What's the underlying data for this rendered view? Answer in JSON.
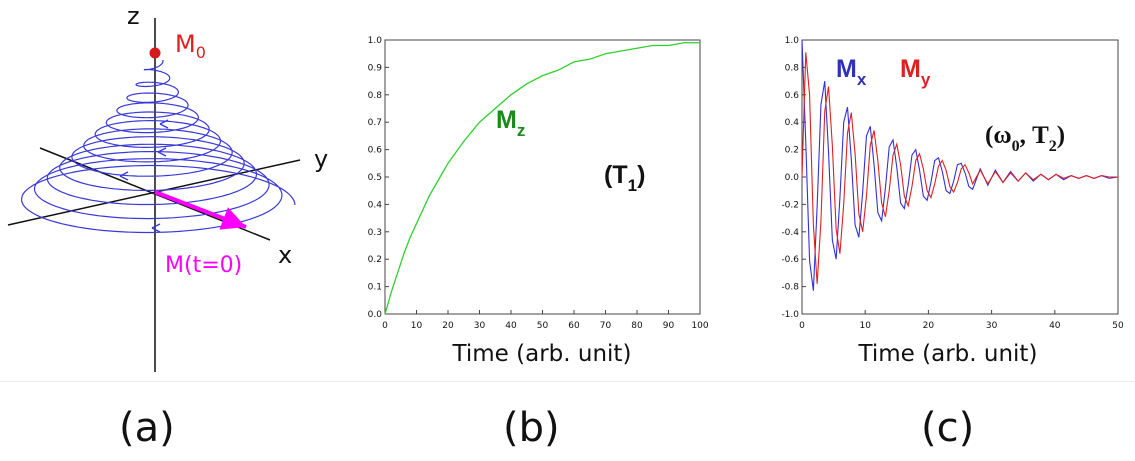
{
  "panels": {
    "a": {
      "caption": "(a)",
      "axis_z": "z",
      "axis_y": "y",
      "axis_x": "x",
      "m0_label": "M",
      "m0_sub": "0",
      "m_t0_label": "M(t=0)",
      "colors": {
        "axes": "#111111",
        "spiral": "#3a3ad8",
        "m0": "#e02020",
        "vector": "#ff00ff"
      }
    },
    "b": {
      "caption": "(b)"
    },
    "c": {
      "caption": "(c)"
    }
  },
  "chart_data": [
    {
      "type": "line",
      "panel": "b",
      "xlabel": "Time (arb. unit)",
      "ylabel": "",
      "xlim": [
        0,
        100
      ],
      "ylim": [
        0,
        1
      ],
      "xticks": [
        "0",
        "10",
        "20",
        "30",
        "40",
        "50",
        "60",
        "70",
        "80",
        "90",
        "100"
      ],
      "yticks": [
        "0.0",
        "0.1",
        "0.2",
        "0.3",
        "0.4",
        "0.5",
        "0.6",
        "0.7",
        "0.8",
        "0.9",
        "1.0"
      ],
      "grid": false,
      "annotations": [
        {
          "text": "M",
          "sub": "z",
          "color": "#1a8a1a"
        },
        {
          "text": "(T",
          "sub": "1",
          "tail": ")",
          "color": "#111111"
        }
      ],
      "series": [
        {
          "name": "Mz",
          "color": "#2ed02e",
          "x": [
            0,
            2,
            4,
            6,
            8,
            10,
            12,
            14,
            16,
            18,
            20,
            25,
            30,
            35,
            40,
            45,
            50,
            55,
            60,
            65,
            70,
            75,
            80,
            85,
            90,
            95,
            100
          ],
          "y": [
            0.0,
            0.08,
            0.15,
            0.22,
            0.28,
            0.33,
            0.38,
            0.43,
            0.47,
            0.51,
            0.55,
            0.63,
            0.7,
            0.75,
            0.8,
            0.84,
            0.87,
            0.89,
            0.92,
            0.93,
            0.95,
            0.96,
            0.97,
            0.98,
            0.98,
            0.99,
            0.99
          ]
        }
      ]
    },
    {
      "type": "line",
      "panel": "c",
      "xlabel": "Time (arb. unit)",
      "ylabel": "",
      "xlim": [
        0,
        50
      ],
      "ylim": [
        -1,
        1
      ],
      "xticks": [
        "0",
        "10",
        "20",
        "30",
        "40",
        "50"
      ],
      "yticks": [
        "-1.0",
        "-0.8",
        "-0.6",
        "-0.4",
        "-0.2",
        "0.0",
        "0.2",
        "0.4",
        "0.6",
        "0.8",
        "1.0"
      ],
      "grid": false,
      "annotations": [
        {
          "text": "M",
          "sub": "x",
          "color": "#3030c0"
        },
        {
          "text": "M",
          "sub": "y",
          "color": "#e02020"
        },
        {
          "text": "(ω",
          "sub": "0",
          "mid": ", T",
          "sub2": "2",
          "tail": ")",
          "color": "#111111"
        }
      ],
      "series": [
        {
          "name": "Mx",
          "color": "#3030e0",
          "x": [
            0,
            0.6,
            1.2,
            1.8,
            2.4,
            3.0,
            3.6,
            4.2,
            4.8,
            5.4,
            6.0,
            6.6,
            7.2,
            7.8,
            8.4,
            9.0,
            9.6,
            10.2,
            10.8,
            11.4,
            12.0,
            12.6,
            13.2,
            13.8,
            14.4,
            15.0,
            15.6,
            16.2,
            16.8,
            17.4,
            18.0,
            18.6,
            19.2,
            19.8,
            20.4,
            21.0,
            21.6,
            22.2,
            22.8,
            23.4,
            24.0,
            24.6,
            25.2,
            25.8,
            26.4,
            27.0,
            28.2,
            29.4,
            30.6,
            31.8,
            33.0,
            34.2,
            35.4,
            36.6,
            37.8,
            39.0,
            40.2,
            41.4,
            42.6,
            43.8,
            45.0,
            46.2,
            47.4,
            48.6,
            50.0
          ],
          "y": [
            1.0,
            0.25,
            -0.61,
            -0.83,
            -0.21,
            0.53,
            0.7,
            0.18,
            -0.46,
            -0.6,
            -0.15,
            0.4,
            0.51,
            0.13,
            -0.35,
            -0.44,
            -0.11,
            0.3,
            0.37,
            0.09,
            -0.26,
            -0.32,
            -0.08,
            0.22,
            0.27,
            0.07,
            -0.19,
            -0.23,
            -0.06,
            0.16,
            0.2,
            0.05,
            -0.14,
            -0.17,
            -0.04,
            0.12,
            0.14,
            0.04,
            -0.1,
            -0.12,
            -0.03,
            0.09,
            0.1,
            0.03,
            -0.07,
            -0.09,
            0.06,
            -0.06,
            0.05,
            -0.04,
            0.04,
            -0.03,
            0.03,
            -0.03,
            0.02,
            -0.02,
            0.02,
            -0.02,
            0.01,
            -0.01,
            0.01,
            -0.01,
            0.01,
            -0.01,
            0.0
          ]
        },
        {
          "name": "My",
          "color": "#e02020",
          "x": [
            0,
            0.6,
            1.2,
            1.8,
            2.4,
            3.0,
            3.6,
            4.2,
            4.8,
            5.4,
            6.0,
            6.6,
            7.2,
            7.8,
            8.4,
            9.0,
            9.6,
            10.2,
            10.8,
            11.4,
            12.0,
            12.6,
            13.2,
            13.8,
            14.4,
            15.0,
            15.6,
            16.2,
            16.8,
            17.4,
            18.0,
            18.6,
            19.2,
            19.8,
            20.4,
            21.0,
            21.6,
            22.2,
            22.8,
            23.4,
            24.0,
            24.6,
            25.2,
            25.8,
            26.4,
            27.0,
            28.2,
            29.4,
            30.6,
            31.8,
            33.0,
            34.2,
            35.4,
            36.6,
            37.8,
            39.0,
            40.2,
            41.4,
            42.6,
            43.8,
            45.0,
            46.2,
            47.4,
            48.6,
            50.0
          ],
          "y": [
            0.0,
            0.91,
            0.6,
            -0.35,
            -0.78,
            -0.32,
            0.48,
            0.66,
            0.23,
            -0.38,
            -0.56,
            -0.2,
            0.32,
            0.47,
            0.17,
            -0.27,
            -0.4,
            -0.14,
            0.23,
            0.34,
            0.12,
            -0.19,
            -0.29,
            -0.1,
            0.16,
            0.24,
            0.09,
            -0.14,
            -0.21,
            -0.07,
            0.12,
            0.17,
            0.06,
            -0.1,
            -0.15,
            -0.05,
            0.08,
            0.12,
            0.05,
            -0.07,
            -0.11,
            -0.04,
            0.06,
            0.09,
            0.03,
            -0.05,
            0.05,
            -0.05,
            0.04,
            -0.04,
            0.03,
            -0.03,
            0.03,
            -0.02,
            0.02,
            -0.02,
            0.02,
            -0.01,
            0.01,
            -0.01,
            0.01,
            -0.01,
            0.01,
            0.0,
            0.0
          ]
        }
      ]
    }
  ]
}
